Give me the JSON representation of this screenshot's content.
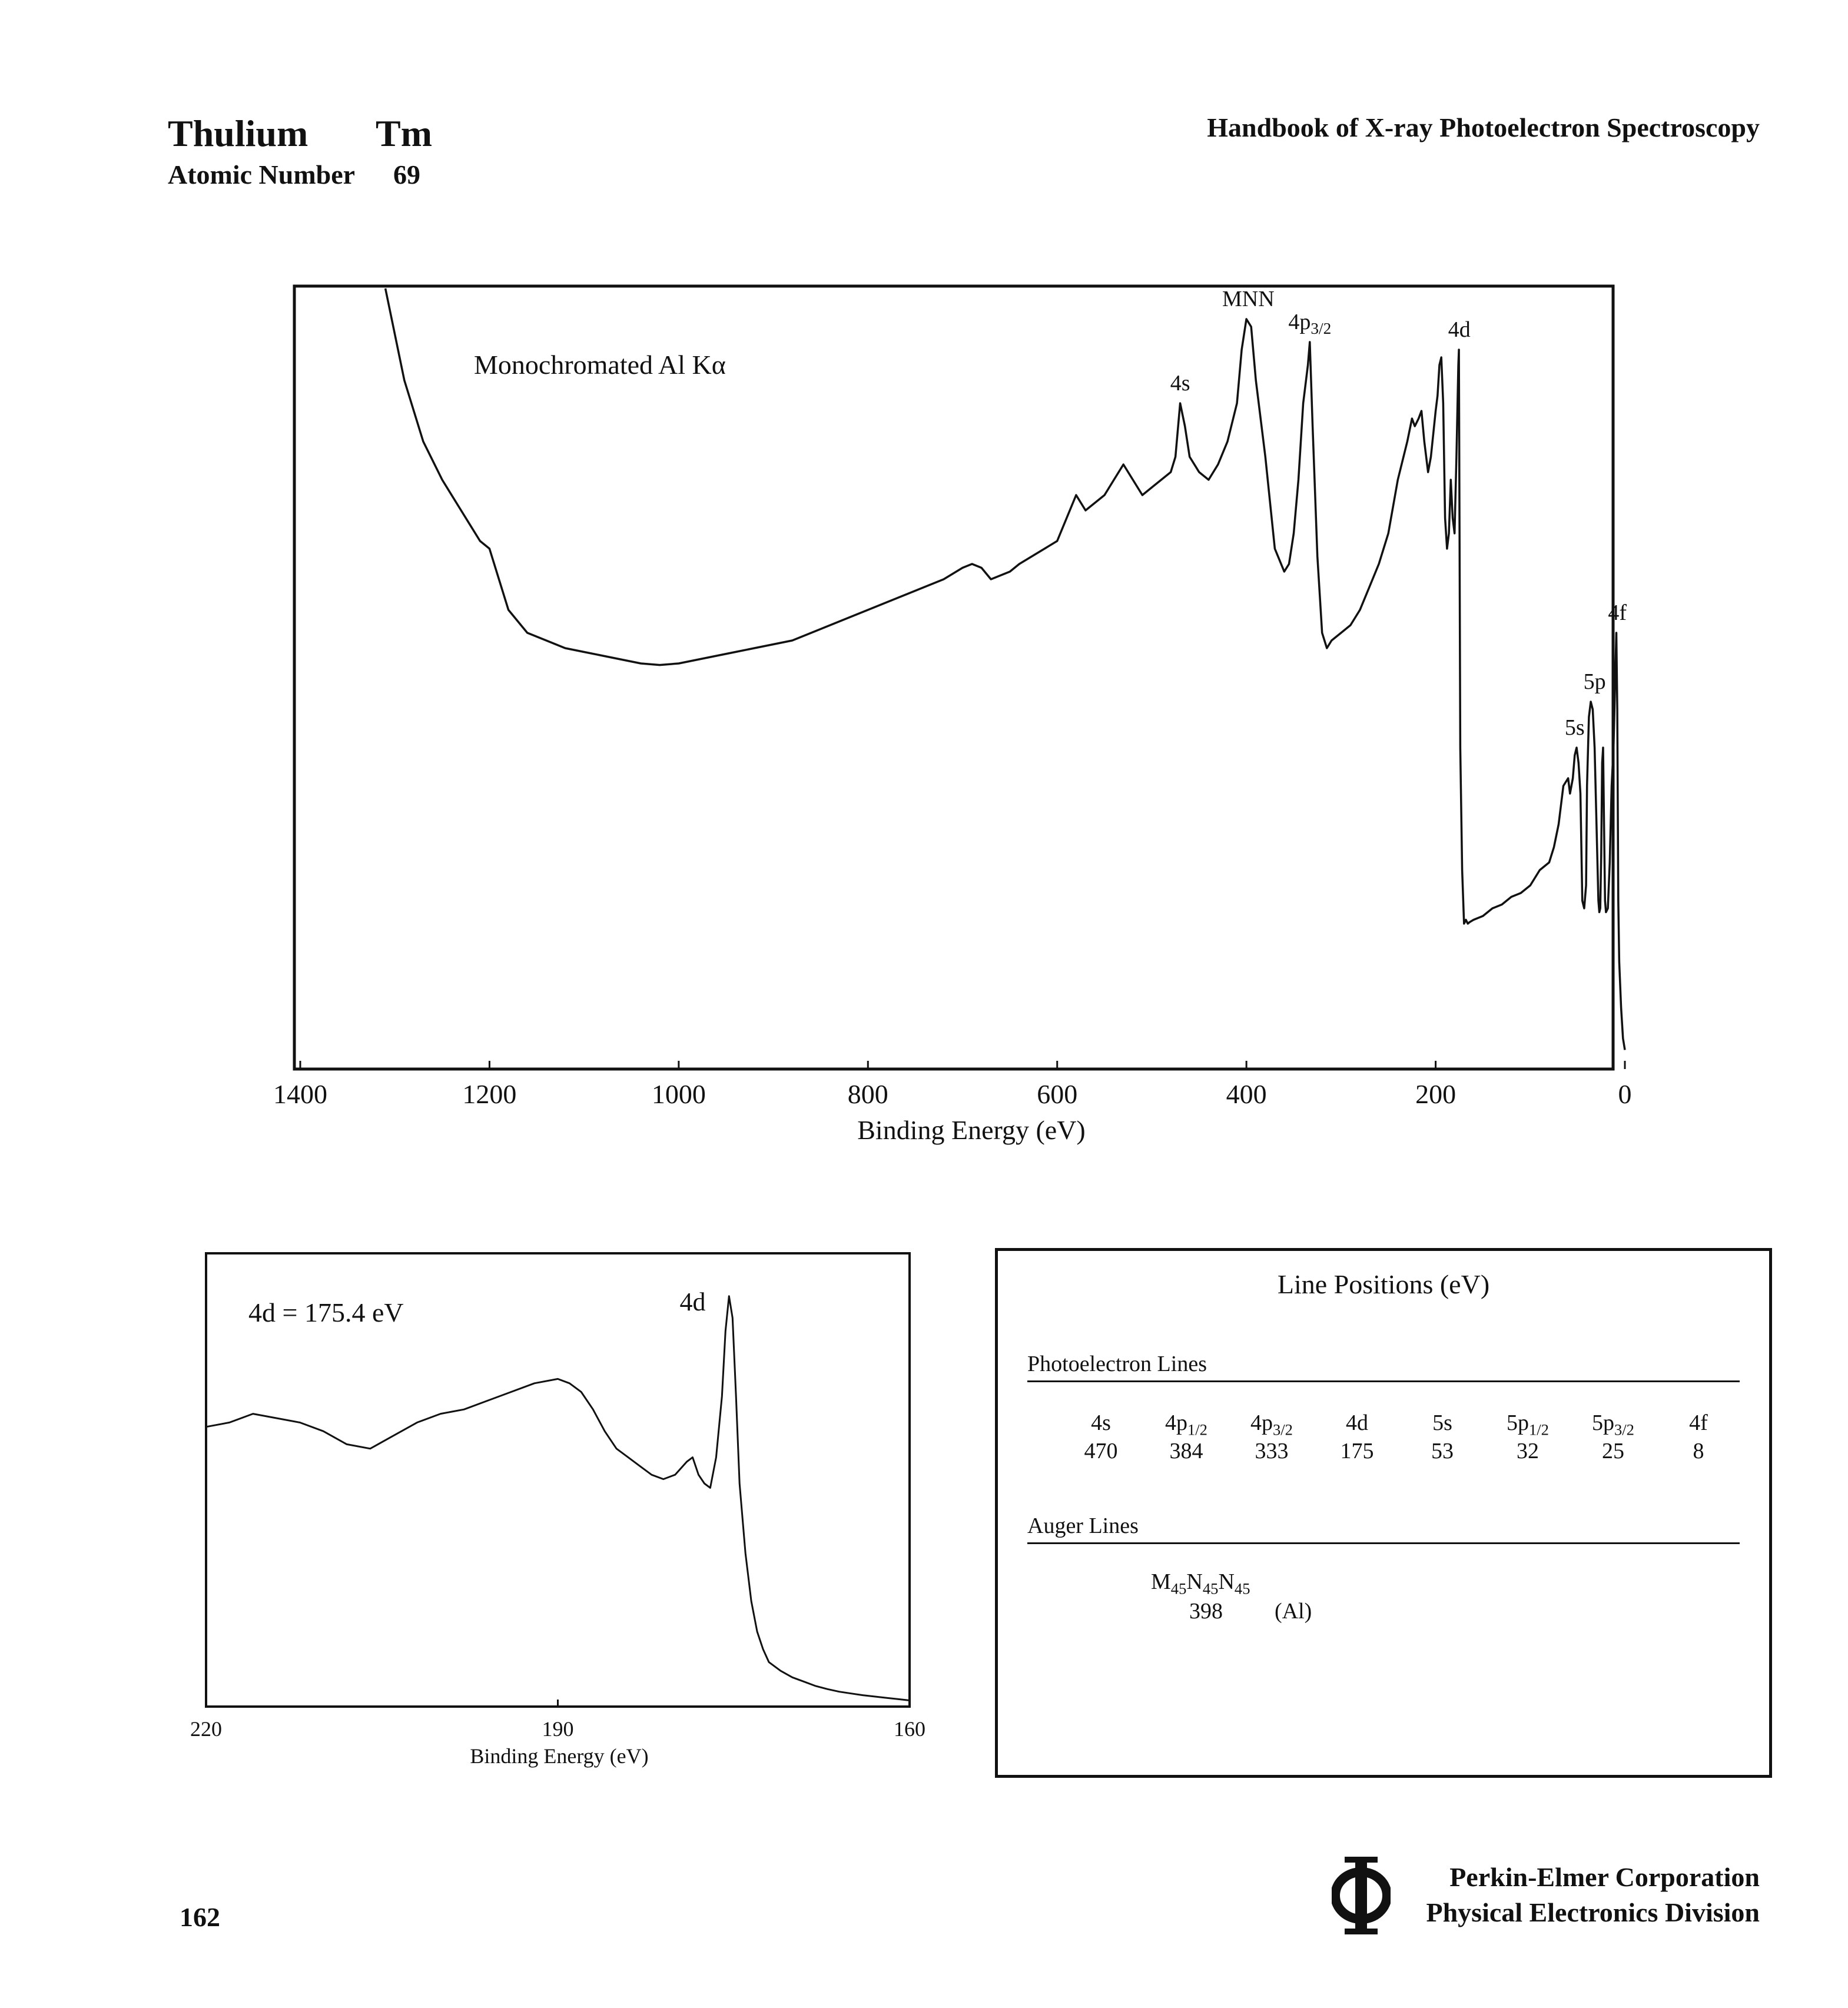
{
  "header": {
    "element_name": "Thulium",
    "element_symbol": "Tm",
    "atomic_label": "Atomic Number",
    "atomic_number": "69",
    "handbook_title": "Handbook of X-ray Photoelectron Spectroscopy"
  },
  "footer": {
    "page_number": "162",
    "company_line1": "Perkin-Elmer Corporation",
    "company_line2": "Physical Electronics Division",
    "logo_icon": "phi-logo-icon"
  },
  "chart_data": [
    {
      "type": "line",
      "title": "",
      "annotation": "Monochromated Al Kα",
      "xlabel": "Binding Energy (eV)",
      "ylabel": "",
      "xlim": [
        1400,
        0
      ],
      "ylim": [
        0,
        100
      ],
      "x_reversed": true,
      "tick_labels": [
        "1400",
        "1200",
        "1000",
        "800",
        "600",
        "400",
        "200",
        "0"
      ],
      "ticks": [
        1400,
        1200,
        1000,
        800,
        600,
        400,
        200,
        0
      ],
      "grid": false,
      "series": [
        {
          "x": [
            1310,
            1290,
            1270,
            1250,
            1230,
            1210,
            1200,
            1180,
            1160,
            1140,
            1120,
            1100,
            1080,
            1060,
            1040,
            1020,
            1000,
            980,
            960,
            940,
            920,
            900,
            880,
            860,
            840,
            820,
            800,
            780,
            760,
            740,
            720,
            700,
            690,
            680,
            670,
            660,
            650,
            640,
            620,
            600,
            590,
            580,
            570,
            560,
            550,
            540,
            530,
            520,
            510,
            500,
            490,
            480,
            475,
            470,
            465,
            460,
            450,
            440,
            430,
            420,
            410,
            405,
            400,
            395,
            390,
            380,
            370,
            360,
            355,
            350,
            345,
            340,
            335,
            333,
            330,
            325,
            320,
            315,
            310,
            300,
            290,
            280,
            270,
            260,
            250,
            240,
            230,
            225,
            222,
            218,
            215,
            212,
            208,
            205,
            200,
            198,
            196,
            194,
            192,
            190,
            188,
            186,
            184,
            182,
            180,
            178,
            176,
            175.4,
            174,
            172,
            170,
            168,
            166,
            164,
            160,
            150,
            140,
            130,
            120,
            110,
            100,
            90,
            80,
            75,
            70,
            65,
            60,
            58,
            55,
            53,
            51,
            49,
            47,
            45,
            43,
            41,
            40,
            38,
            36,
            34,
            32,
            30,
            28,
            27,
            26,
            25,
            24,
            23,
            22,
            21,
            20,
            18,
            16,
            14,
            12,
            10,
            9,
            8,
            7,
            6,
            4,
            2,
            0
          ],
          "y": [
            100,
            88,
            80,
            75,
            71,
            67,
            66,
            58,
            55,
            54,
            53,
            52.5,
            52,
            51.5,
            51,
            50.8,
            51,
            51.5,
            52,
            52.5,
            53,
            53.5,
            54,
            55,
            56,
            57,
            58,
            59,
            60,
            61,
            62,
            63.5,
            64,
            63.5,
            62,
            62.5,
            63,
            64,
            65.5,
            67,
            70,
            73,
            71,
            72,
            73,
            75,
            77,
            75,
            73,
            74,
            75,
            76,
            78,
            85,
            82,
            78,
            76,
            75,
            77,
            80,
            85,
            92,
            96,
            95,
            88,
            78,
            66,
            63,
            64,
            68,
            75,
            85,
            90,
            93,
            82,
            65,
            55,
            53,
            54,
            55,
            56,
            58,
            61,
            64,
            68,
            75,
            80,
            83,
            82,
            83,
            84,
            80,
            76,
            78,
            84,
            86,
            90,
            91,
            85,
            70,
            66,
            68,
            75,
            70,
            68,
            78,
            90,
            92,
            40,
            24,
            17,
            17.5,
            17,
            17.2,
            17.5,
            18,
            19,
            19.5,
            20.5,
            21,
            22,
            24,
            25,
            27,
            30,
            35,
            36,
            34,
            36,
            39,
            40,
            38,
            34,
            20,
            19,
            22,
            35,
            44,
            46,
            45,
            40,
            30,
            20,
            18.5,
            19,
            26,
            38,
            40,
            30,
            20,
            18.5,
            19,
            25,
            35,
            40,
            50,
            55,
            45,
            20,
            12,
            6,
            2,
            0.5
          ]
        }
      ],
      "peak_labels": [
        {
          "text": "4s",
          "x": 470,
          "y": 85
        },
        {
          "text": "MNN",
          "x": 398,
          "y": 96
        },
        {
          "text": "4p3/2",
          "x": 333,
          "y": 93
        },
        {
          "text": "4d",
          "x": 175,
          "y": 92
        },
        {
          "text": "5s",
          "x": 53,
          "y": 40
        },
        {
          "text": "5p",
          "x": 32,
          "y": 46
        },
        {
          "text": "4f",
          "x": 8,
          "y": 55
        }
      ]
    },
    {
      "type": "line",
      "title": "",
      "annotation": "4d = 175.4 eV",
      "xlabel": "Binding Energy (eV)",
      "ylabel": "",
      "xlim": [
        220,
        160
      ],
      "ylim": [
        0,
        100
      ],
      "x_reversed": true,
      "tick_labels": [
        "220",
        "190",
        "160"
      ],
      "ticks": [
        220,
        190,
        160
      ],
      "grid": false,
      "series": [
        {
          "x": [
            220,
            218,
            216,
            214,
            212,
            210,
            208,
            206,
            204,
            202,
            200,
            198,
            196,
            194,
            192,
            190,
            189,
            188,
            187,
            186,
            185,
            184,
            183,
            182,
            181,
            180,
            179,
            178.5,
            178,
            177.5,
            177,
            176.5,
            176,
            175.7,
            175.4,
            175.1,
            174.8,
            174.5,
            174,
            173.5,
            173,
            172.5,
            172,
            171,
            170,
            169,
            168,
            167,
            166,
            165,
            164,
            163,
            162,
            161,
            160
          ],
          "y": [
            63,
            64,
            66,
            65,
            64,
            62,
            59,
            58,
            61,
            64,
            66,
            67,
            69,
            71,
            73,
            74,
            73,
            71,
            67,
            62,
            58,
            56,
            54,
            52,
            51,
            52,
            55,
            56,
            52,
            50,
            49,
            56,
            70,
            85,
            93,
            88,
            70,
            50,
            34,
            23,
            16,
            12,
            9,
            7,
            5.5,
            4.5,
            3.5,
            2.8,
            2.2,
            1.8,
            1.4,
            1.1,
            0.8,
            0.5,
            0.2
          ]
        }
      ],
      "peak_labels": [
        {
          "text": "4d",
          "x": 178.5,
          "y": 87
        }
      ]
    }
  ],
  "line_positions": {
    "title": "Line Positions (eV)",
    "photoelectron_label": "Photoelectron Lines",
    "photoelectron": [
      {
        "base": "4s",
        "sub": "",
        "value": "470"
      },
      {
        "base": "4p",
        "sub": "1/2",
        "value": "384"
      },
      {
        "base": "4p",
        "sub": "3/2",
        "value": "333"
      },
      {
        "base": "4d",
        "sub": "",
        "value": "175"
      },
      {
        "base": "5s",
        "sub": "",
        "value": "53"
      },
      {
        "base": "5p",
        "sub": "1/2",
        "value": "32"
      },
      {
        "base": "5p",
        "sub": "3/2",
        "value": "25"
      },
      {
        "base": "4f",
        "sub": "",
        "value": "8"
      }
    ],
    "auger_label": "Auger Lines",
    "auger": {
      "name_parts": [
        "M",
        "45",
        "N",
        "45",
        "N",
        "45"
      ],
      "value": "398",
      "source": "(Al)"
    }
  }
}
